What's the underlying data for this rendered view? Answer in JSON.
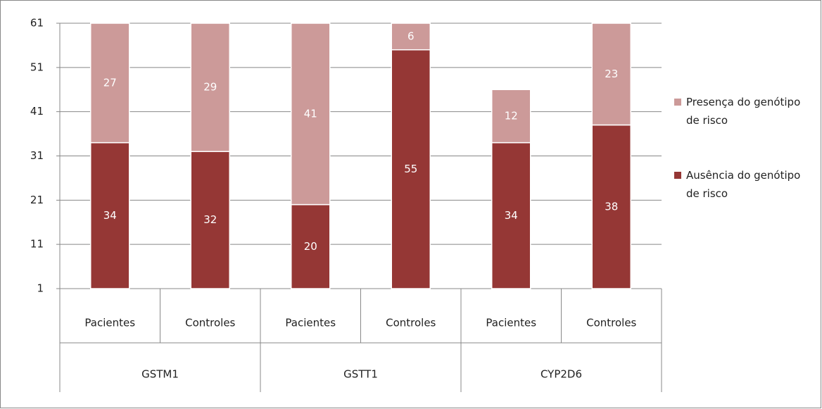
{
  "chart_data": {
    "type": "stacked_bar",
    "categories": [
      "Pacientes",
      "Controles",
      "Pacientes",
      "Controles",
      "Pacientes",
      "Controles"
    ],
    "groups": [
      "GSTM1",
      "GSTT1",
      "CYP2D6"
    ],
    "series": [
      {
        "name": "Ausência do genótipo de risco",
        "color": "#953735",
        "values": [
          34,
          32,
          20,
          55,
          34,
          38
        ]
      },
      {
        "name": "Presença do genótipo de risco",
        "color": "#cc9a99",
        "values": [
          27,
          29,
          41,
          6,
          12,
          23
        ]
      }
    ],
    "ylim": [
      1,
      61
    ],
    "yticks": [
      1,
      11,
      21,
      31,
      41,
      51,
      61
    ],
    "grid": true,
    "legend": "right"
  }
}
